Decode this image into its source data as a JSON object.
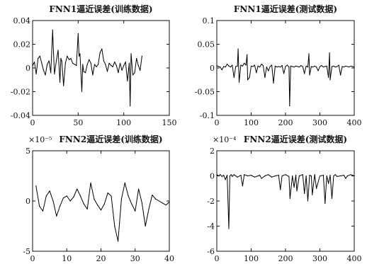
{
  "chart_data": [
    {
      "type": "line",
      "title": "FNN1逼近误差(训练数据)",
      "exponent_label": "",
      "xlim": [
        0,
        150
      ],
      "ylim": [
        -0.04,
        0.04
      ],
      "xticks": [
        0,
        50,
        100,
        150
      ],
      "xticklabels": [
        "0",
        "50",
        "100",
        "150"
      ],
      "yticks": [
        -0.04,
        -0.02,
        0,
        0.02,
        0.04
      ],
      "yticklabels": [
        "-0.04",
        "-0.02",
        "0",
        "0.02",
        "0.04"
      ],
      "x": [
        0,
        2,
        4,
        6,
        8,
        10,
        12,
        14,
        16,
        18,
        20,
        22,
        23,
        24,
        26,
        28,
        30,
        31,
        32,
        34,
        36,
        38,
        40,
        42,
        44,
        46,
        48,
        50,
        51,
        52,
        54,
        55,
        56,
        58,
        60,
        62,
        64,
        66,
        68,
        70,
        72,
        74,
        76,
        78,
        80,
        82,
        84,
        86,
        88,
        90,
        92,
        94,
        96,
        98,
        100,
        102,
        104,
        106,
        107,
        108,
        110,
        112,
        114,
        116,
        118,
        120
      ],
      "y": [
        0.002,
        0.005,
        -0.005,
        0.008,
        0.01,
        0.004,
        -0.002,
        -0.006,
        0.003,
        0.006,
        -0.004,
        0.032,
        0.012,
        -0.005,
        0.006,
        0.015,
        -0.012,
        0.008,
        0.006,
        -0.015,
        0.004,
        0.01,
        0.007,
        0.008,
        0.004,
        0.003,
        0.002,
        0.029,
        0.01,
        0.012,
        -0.02,
        0.003,
        -0.003,
        -0.004,
        0.003,
        0.007,
        0.004,
        -0.006,
        0.003,
        0.001,
        0.003,
        0.013,
        0.016,
        0.006,
        0.003,
        -0.003,
        0.004,
        0.002,
        0.001,
        0.005,
        0.002,
        -0.004,
        0.004,
        -0.002,
        0.002,
        0.005,
        -0.011,
        0.004,
        -0.032,
        0.012,
        -0.006,
        -0.004,
        0.008,
        0.002,
        -0.002,
        0.01
      ]
    },
    {
      "type": "line",
      "title": "FNN1逼近误差(测试数据)",
      "exponent_label": "",
      "xlim": [
        0,
        400
      ],
      "ylim": [
        -0.1,
        0.1
      ],
      "xticks": [
        0,
        100,
        200,
        300,
        400
      ],
      "xticklabels": [
        "0",
        "100",
        "200",
        "300",
        "400"
      ],
      "yticks": [
        -0.1,
        -0.05,
        0,
        0.05,
        0.1
      ],
      "yticklabels": [
        "-0.1",
        "-0.05",
        "0",
        "0.05",
        "0.1"
      ],
      "x": [
        0,
        5,
        10,
        15,
        20,
        25,
        30,
        35,
        40,
        45,
        50,
        55,
        60,
        62,
        65,
        70,
        75,
        80,
        85,
        88,
        90,
        95,
        100,
        105,
        110,
        115,
        120,
        125,
        130,
        135,
        140,
        145,
        150,
        155,
        160,
        165,
        170,
        175,
        180,
        185,
        190,
        195,
        200,
        205,
        210,
        212,
        215,
        220,
        225,
        230,
        235,
        240,
        245,
        250,
        255,
        260,
        265,
        268,
        270,
        275,
        280,
        285,
        290,
        295,
        300,
        305,
        310,
        315,
        320,
        325,
        328,
        330,
        335,
        340,
        345,
        350,
        355,
        360,
        365,
        370,
        375,
        380,
        385,
        390,
        395,
        400
      ],
      "y": [
        0.005,
        0.003,
        0.002,
        -0.004,
        0.003,
        0.002,
        0.008,
        0.004,
        0.002,
        0.006,
        -0.02,
        0.003,
        0.004,
        0.04,
        -0.03,
        0.006,
        0.004,
        0.01,
        0.006,
        0.028,
        -0.025,
        -0.02,
        0.004,
        0.003,
        0.006,
        -0.01,
        0.004,
        0.002,
        0.008,
        0.005,
        -0.02,
        0.002,
        -0.006,
        0.003,
        0.006,
        -0.032,
        0.004,
        0.002,
        0.003,
        0.002,
        0.005,
        -0.012,
        0.003,
        0.006,
        0.002,
        -0.08,
        0.004,
        0.003,
        0.002,
        0.004,
        0.003,
        0.002,
        0.005,
        0.003,
        -0.012,
        0.004,
        0.002,
        0.03,
        -0.015,
        0.003,
        0.002,
        0.004,
        0.002,
        -0.006,
        0.003,
        0.005,
        0.002,
        0.003,
        0.004,
        -0.02,
        0.032,
        -0.025,
        0.003,
        0.004,
        0.002,
        0.003,
        0.006,
        -0.015,
        0.003,
        0.002,
        0.004,
        0.003,
        0.002,
        0.004,
        0.003,
        0.002
      ]
    },
    {
      "type": "line",
      "title": "FNN2逼近误差(训练数据)",
      "exponent_label": "×10⁻⁵",
      "xlim": [
        0,
        40
      ],
      "ylim": [
        -5,
        5
      ],
      "xticks": [
        0,
        10,
        20,
        30,
        40
      ],
      "xticklabels": [
        "0",
        "10",
        "20",
        "30",
        "40"
      ],
      "yticks": [
        -5,
        0,
        5
      ],
      "yticklabels": [
        "-5",
        "0",
        "5"
      ],
      "x": [
        1,
        2,
        3,
        4,
        5,
        6,
        7,
        8,
        9,
        10,
        11,
        12,
        13,
        14,
        15,
        16,
        17,
        18,
        19,
        20,
        21,
        22,
        23,
        24,
        25,
        26,
        27,
        28,
        29,
        30,
        31,
        32,
        33,
        34,
        35,
        36,
        37,
        38,
        39,
        40
      ],
      "y": [
        1.5,
        -0.5,
        -1.0,
        0.5,
        1.0,
        0.0,
        -1.5,
        -0.5,
        0.3,
        0.5,
        0.0,
        0.4,
        1.2,
        0.5,
        -0.3,
        -0.8,
        1.8,
        0.2,
        -0.4,
        -0.9,
        -0.3,
        0.8,
        0.5,
        -2.5,
        -4.0,
        0.2,
        1.8,
        0.5,
        -0.3,
        -1.0,
        1.2,
        -0.2,
        -2.5,
        -0.8,
        0.6,
        0.2,
        0.0,
        -0.2,
        -0.4,
        -0.1
      ]
    },
    {
      "type": "line",
      "title": "FNN2逼近误差(测试数据)",
      "exponent_label": "×10⁻⁴",
      "xlim": [
        0,
        400
      ],
      "ylim": [
        -6,
        2
      ],
      "xticks": [
        0,
        100,
        200,
        300,
        400
      ],
      "xticklabels": [
        "0",
        "100",
        "200",
        "300",
        "400"
      ],
      "yticks": [
        -6,
        -4,
        -2,
        0,
        2
      ],
      "yticklabels": [
        "-6",
        "-4",
        "-2",
        "0",
        "2"
      ],
      "x": [
        0,
        5,
        10,
        15,
        20,
        25,
        30,
        35,
        38,
        42,
        45,
        50,
        55,
        60,
        70,
        75,
        80,
        90,
        100,
        110,
        120,
        125,
        130,
        140,
        150,
        160,
        170,
        180,
        185,
        190,
        200,
        210,
        213,
        220,
        225,
        230,
        233,
        240,
        250,
        255,
        260,
        265,
        270,
        275,
        278,
        285,
        290,
        300,
        310,
        315,
        320,
        325,
        330,
        335,
        340,
        345,
        350,
        360,
        370,
        375,
        380,
        390,
        400
      ],
      "y": [
        0.1,
        0.0,
        0.1,
        -0.05,
        0.05,
        -0.3,
        0.05,
        -4.2,
        0.0,
        0.1,
        -0.05,
        0.1,
        0.0,
        -0.1,
        0.05,
        -0.8,
        0.1,
        0.0,
        0.05,
        -0.1,
        0.0,
        0.05,
        -0.2,
        0.0,
        0.1,
        -0.1,
        0.0,
        0.05,
        -1.1,
        0.0,
        0.1,
        -0.05,
        -1.8,
        0.0,
        -0.9,
        0.05,
        -1.2,
        0.0,
        0.1,
        -1.4,
        0.0,
        -2.0,
        0.05,
        0.0,
        -1.5,
        0.1,
        -1.0,
        0.0,
        0.05,
        -2.2,
        0.0,
        -0.6,
        0.05,
        -1.8,
        0.0,
        0.1,
        -0.05,
        0.0,
        0.05,
        -0.2,
        0.0,
        0.1,
        0.0
      ]
    }
  ]
}
